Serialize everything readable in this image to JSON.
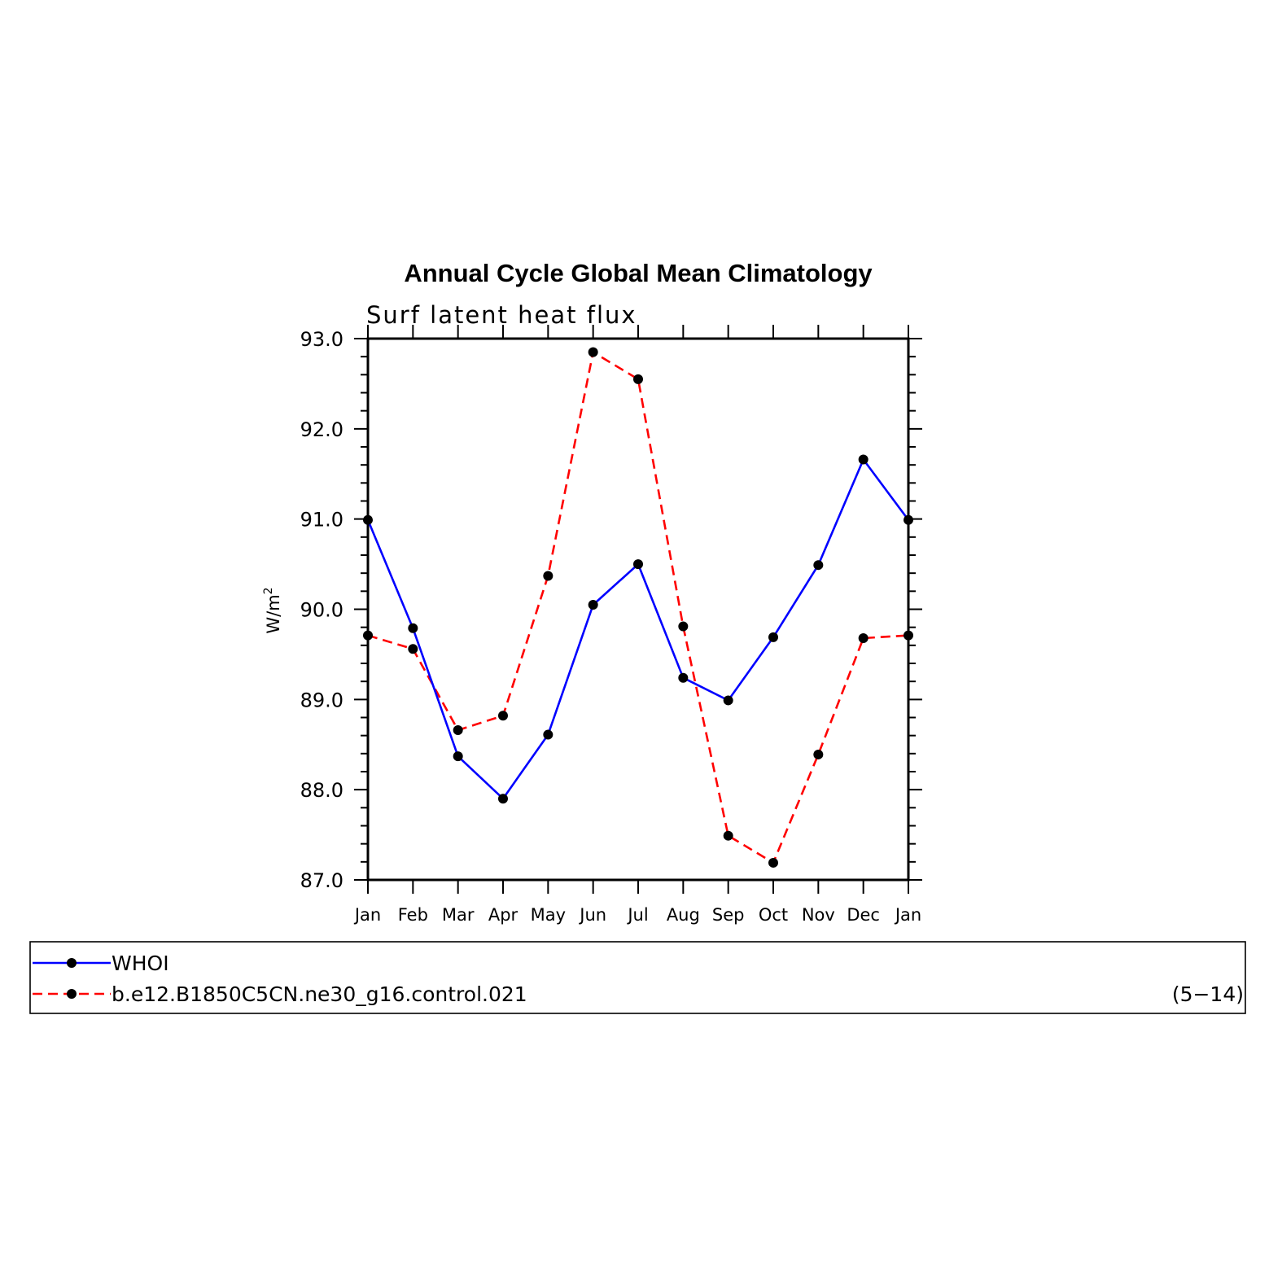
{
  "chart_data": {
    "type": "line",
    "title": "Annual Cycle Global Mean Climatology",
    "subtitle": "Surf latent heat flux",
    "ylabel": "W/m",
    "ylabel_sup": "2",
    "xlabel": "",
    "categories": [
      "Jan",
      "Feb",
      "Mar",
      "Apr",
      "May",
      "Jun",
      "Jul",
      "Aug",
      "Sep",
      "Oct",
      "Nov",
      "Dec",
      "Jan"
    ],
    "ylim": [
      87.0,
      93.0
    ],
    "yticks": [
      "87.0",
      "88.0",
      "89.0",
      "90.0",
      "91.0",
      "92.0",
      "93.0"
    ],
    "grid": false,
    "series": [
      {
        "name": "WHOI",
        "color": "#0000ff",
        "style": "solid",
        "values": [
          90.99,
          89.79,
          88.37,
          87.9,
          88.61,
          90.05,
          90.5,
          89.24,
          88.99,
          89.69,
          90.49,
          91.66,
          90.99
        ]
      },
      {
        "name": "b.e12.B1850C5CN.ne30_g16.control.021",
        "color": "#ff0000",
        "style": "dashed",
        "values": [
          89.71,
          89.56,
          88.66,
          88.82,
          90.37,
          92.85,
          92.55,
          89.81,
          87.49,
          87.19,
          88.39,
          89.68,
          89.71
        ]
      }
    ],
    "marker_color": "#000000",
    "legend_position": "bottom",
    "legend_note": "(5−14)"
  }
}
